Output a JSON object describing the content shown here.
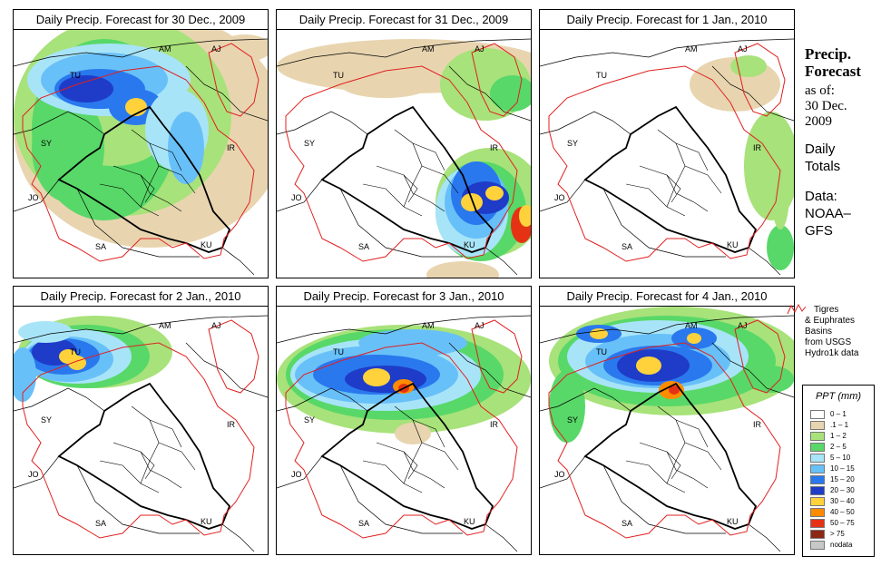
{
  "panels": [
    {
      "title": "Daily Precip. Forecast for  30 Dec., 2009"
    },
    {
      "title": "Daily Precip. Forecast for  31 Dec., 2009"
    },
    {
      "title": "Daily Precip. Forecast for  1 Jan., 2010"
    },
    {
      "title": "Daily Precip. Forecast for  2 Jan., 2010"
    },
    {
      "title": "Daily Precip. Forecast for  3 Jan., 2010"
    },
    {
      "title": "Daily Precip. Forecast for  4 Jan., 2010"
    }
  ],
  "map_labels": [
    "TU",
    "AM",
    "AJ",
    "SY",
    "IR",
    "JO",
    "SA",
    "KU"
  ],
  "side": {
    "heading1": "Precip.",
    "heading2": "Forecast",
    "asof": "as of:",
    "date1": "30 Dec.",
    "date2": "2009",
    "totals1": "Daily",
    "totals2": "Totals",
    "data1": "Data:",
    "data2": "NOAA–",
    "data3": "GFS"
  },
  "basins": {
    "l1": "Tigres",
    "l2": "& Euphrates",
    "l3": "Basins",
    "l4": "from USGS",
    "l5": "Hydro1k data",
    "line_color": "#e02020"
  },
  "legend": {
    "title": "PPT (mm)",
    "items": [
      {
        "range": "0 – 1",
        "color": "#ffffff"
      },
      {
        "range": ".1 – 1",
        "color": "#e8d5b0"
      },
      {
        "range": "1 – 2",
        "color": "#a8e27a"
      },
      {
        "range": "2 – 5",
        "color": "#58d868"
      },
      {
        "range": "5 – 10",
        "color": "#a8e4f8"
      },
      {
        "range": "10 – 15",
        "color": "#68c0f8"
      },
      {
        "range": "15 – 20",
        "color": "#2a78ee"
      },
      {
        "range": "20 – 30",
        "color": "#1e3cc8"
      },
      {
        "range": "30 – 40",
        "color": "#ffd23c"
      },
      {
        "range": "40 – 50",
        "color": "#ff8c00"
      },
      {
        "range": "50 – 75",
        "color": "#e63214"
      },
      {
        "range": "> 75",
        "color": "#8c2814"
      },
      {
        "range": "nodata",
        "color": "#c8c8c8"
      }
    ]
  }
}
